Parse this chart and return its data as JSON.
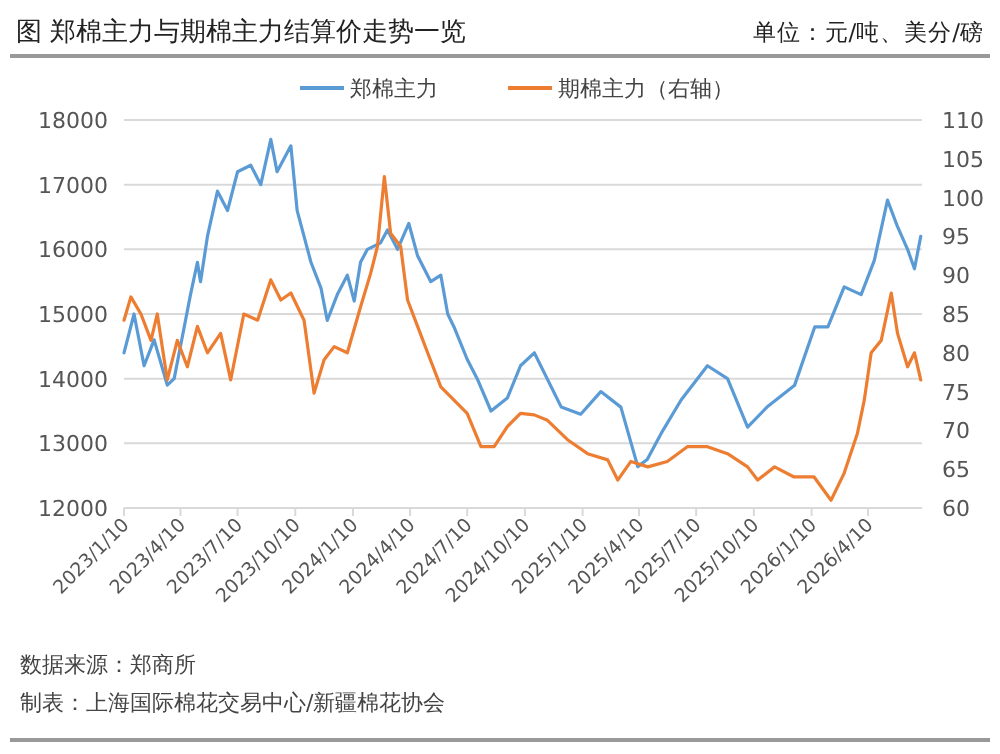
{
  "chart_data": {
    "type": "line",
    "title": "图 郑棉主力与期棉主力结算价走势一览",
    "subtitle": "单位：元/吨、美分/磅",
    "annotations": [
      "数据来源：郑商所",
      "制表：上海国际棉花交易中心/新疆棉花协会"
    ],
    "xlim": [
      "2023-01-10",
      "2026-07-05"
    ],
    "xticks": [
      {
        "value": "2023-01-10",
        "label": "2023/1/10"
      },
      {
        "value": "2023-04-10",
        "label": "2023/4/10"
      },
      {
        "value": "2023-07-10",
        "label": "2023/7/10"
      },
      {
        "value": "2023-10-10",
        "label": "2023/10/10"
      },
      {
        "value": "2024-01-10",
        "label": "2024/1/10"
      },
      {
        "value": "2024-04-10",
        "label": "2024/4/10"
      },
      {
        "value": "2024-07-10",
        "label": "2024/7/10"
      },
      {
        "value": "2024-10-10",
        "label": "2024/10/10"
      },
      {
        "value": "2025-01-10",
        "label": "2025/1/10"
      },
      {
        "value": "2025-04-10",
        "label": "2025/4/10"
      },
      {
        "value": "2025-07-10",
        "label": "2025/7/10"
      },
      {
        "value": "2025-10-10",
        "label": "2025/10/10"
      },
      {
        "value": "2026-01-10",
        "label": "2026/1/10"
      },
      {
        "value": "2026-04-10",
        "label": "2026/4/10"
      }
    ],
    "ylim": [
      12000,
      18000
    ],
    "yticks": [
      12000,
      13000,
      14000,
      15000,
      16000,
      17000,
      18000
    ],
    "y2lim": [
      60,
      110
    ],
    "y2ticks": [
      60,
      65,
      70,
      75,
      80,
      85,
      90,
      95,
      100,
      105,
      110
    ],
    "grid": "y",
    "legend": "top",
    "line_style": "solid",
    "series": [
      {
        "name": "郑棉主力",
        "color": "#5b9bd5",
        "x": [
          "2023-01-10",
          "2023-01-26",
          "2023-02-11",
          "2023-02-27",
          "2023-03-20",
          "2023-03-31",
          "2023-04-16",
          "2023-04-26",
          "2023-05-07",
          "2023-05-12",
          "2023-05-23",
          "2023-06-08",
          "2023-06-24",
          "2023-07-10",
          "2023-07-31",
          "2023-08-16",
          "2023-09-01",
          "2023-09-11",
          "2023-10-03",
          "2023-10-13",
          "2023-11-04",
          "2023-11-20",
          "2023-11-30",
          "2023-12-16",
          "2024-01-01",
          "2024-01-12",
          "2024-01-22",
          "2024-02-02",
          "2024-02-23",
          "2024-03-05",
          "2024-03-21",
          "2024-04-08",
          "2024-04-22",
          "2024-05-13",
          "2024-05-29",
          "2024-06-09",
          "2024-06-19",
          "2024-07-10",
          "2024-07-26",
          "2024-08-17",
          "2024-09-12",
          "2024-10-03",
          "2024-10-25",
          "2024-12-07",
          "2025-01-07",
          "2025-02-08",
          "2025-03-12",
          "2025-04-08",
          "2025-04-23",
          "2025-05-15",
          "2025-06-16",
          "2025-07-28",
          "2025-08-29",
          "2025-09-30",
          "2025-11-01",
          "2025-12-14",
          "2026-01-15",
          "2026-02-05",
          "2026-03-03",
          "2026-03-30",
          "2026-04-20",
          "2026-05-11",
          "2026-05-27",
          "2026-06-12",
          "2026-06-23",
          "2026-07-03"
        ],
        "values": [
          14400,
          15000,
          14200,
          14600,
          13900,
          14000,
          14800,
          15300,
          15800,
          15500,
          16200,
          16900,
          16600,
          17200,
          17300,
          17000,
          17700,
          17200,
          17600,
          16600,
          15800,
          15400,
          14900,
          15300,
          15600,
          15200,
          15800,
          16000,
          16100,
          16300,
          16000,
          16400,
          15900,
          15500,
          15600,
          15000,
          14800,
          14300,
          14000,
          13500,
          13700,
          14200,
          14400,
          13560,
          13450,
          13800,
          13560,
          12640,
          12750,
          13150,
          13670,
          14200,
          14000,
          13250,
          13570,
          13900,
          14800,
          14800,
          15420,
          15300,
          15830,
          16760,
          16350,
          16000,
          15700,
          16200
        ]
      },
      {
        "name": "期棉主力（右轴）",
        "color": "#ed7d31",
        "axis": "y2",
        "x": [
          "2023-01-10",
          "2023-01-21",
          "2023-02-06",
          "2023-02-22",
          "2023-03-04",
          "2023-03-20",
          "2023-04-05",
          "2023-04-21",
          "2023-05-07",
          "2023-05-23",
          "2023-06-13",
          "2023-06-29",
          "2023-07-20",
          "2023-08-11",
          "2023-09-01",
          "2023-09-17",
          "2023-10-03",
          "2023-10-24",
          "2023-11-09",
          "2023-11-25",
          "2023-12-11",
          "2024-01-01",
          "2024-01-22",
          "2024-02-07",
          "2024-02-18",
          "2024-02-29",
          "2024-03-10",
          "2024-03-26",
          "2024-04-06",
          "2024-04-22",
          "2024-05-08",
          "2024-05-29",
          "2024-06-19",
          "2024-07-10",
          "2024-08-01",
          "2024-08-22",
          "2024-09-12",
          "2024-10-03",
          "2024-10-25",
          "2024-11-15",
          "2024-12-17",
          "2025-01-18",
          "2025-02-19",
          "2025-03-07",
          "2025-03-28",
          "2025-04-24",
          "2025-05-25",
          "2025-06-26",
          "2025-07-28",
          "2025-08-29",
          "2025-09-30",
          "2025-10-16",
          "2025-11-12",
          "2025-12-13",
          "2026-01-14",
          "2026-02-10",
          "2026-03-03",
          "2026-03-24",
          "2026-04-04",
          "2026-04-15",
          "2026-05-01",
          "2026-05-17",
          "2026-05-27",
          "2026-06-12",
          "2026-06-23",
          "2026-07-03"
        ],
        "values": [
          84.2,
          87.2,
          85,
          81.6,
          85,
          76.5,
          81.6,
          78.2,
          83.4,
          80,
          82.5,
          76.5,
          85,
          84.2,
          89.4,
          86.8,
          87.7,
          84.2,
          74.8,
          79.1,
          80.8,
          80,
          85.9,
          90.2,
          93.7,
          102.7,
          95.4,
          93.7,
          86.8,
          83.4,
          80,
          75.6,
          73.9,
          72.2,
          67.9,
          67.9,
          70.5,
          72.2,
          72,
          71.3,
          68.8,
          67,
          66.2,
          63.6,
          66,
          65.3,
          66,
          67.9,
          67.9,
          67,
          65.3,
          63.6,
          65.3,
          64,
          64,
          61,
          64.5,
          69.6,
          73.9,
          80,
          81.6,
          87.7,
          82.5,
          78.2,
          80,
          76.5
        ]
      }
    ]
  }
}
